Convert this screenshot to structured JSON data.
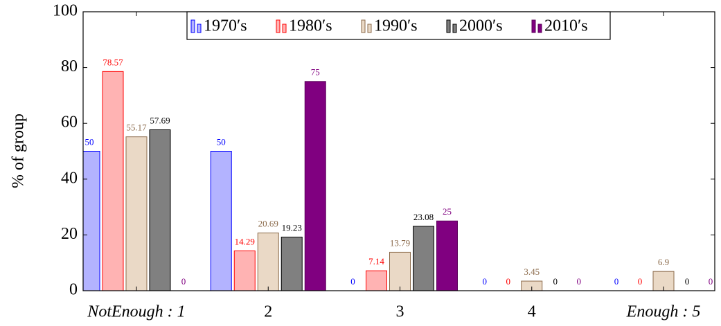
{
  "chart_data": {
    "type": "bar",
    "ylabel": "% of group",
    "categories": [
      "NotEnough : 1",
      "2",
      "3",
      "4",
      "Enough : 5"
    ],
    "series": [
      {
        "name": "1970′s",
        "color": "#b3b3ff",
        "edgecolor": "#0000ff",
        "label_color": "#0000ff",
        "values": [
          50,
          50,
          0,
          0,
          0
        ]
      },
      {
        "name": "1980′s",
        "color": "#ffb3b3",
        "edgecolor": "#ff0000",
        "label_color": "#ff0000",
        "values": [
          78.57,
          14.29,
          7.14,
          0,
          0
        ]
      },
      {
        "name": "1990′s",
        "color": "#ead9c6",
        "edgecolor": "#8b6a4a",
        "label_color": "#8b6a4a",
        "values": [
          55.17,
          20.69,
          13.79,
          3.45,
          6.9
        ]
      },
      {
        "name": "2000′s",
        "color": "#808080",
        "edgecolor": "#000000",
        "label_color": "#000000",
        "values": [
          57.69,
          19.23,
          23.08,
          0,
          0
        ]
      },
      {
        "name": "2010′s",
        "color": "#800080",
        "edgecolor": "#5a005a",
        "label_color": "#800080",
        "values": [
          0,
          75,
          25,
          0,
          0
        ]
      }
    ],
    "ylim": [
      0,
      100
    ],
    "yticks": [
      0,
      20,
      40,
      60,
      80,
      100
    ],
    "legend": "upper center"
  }
}
